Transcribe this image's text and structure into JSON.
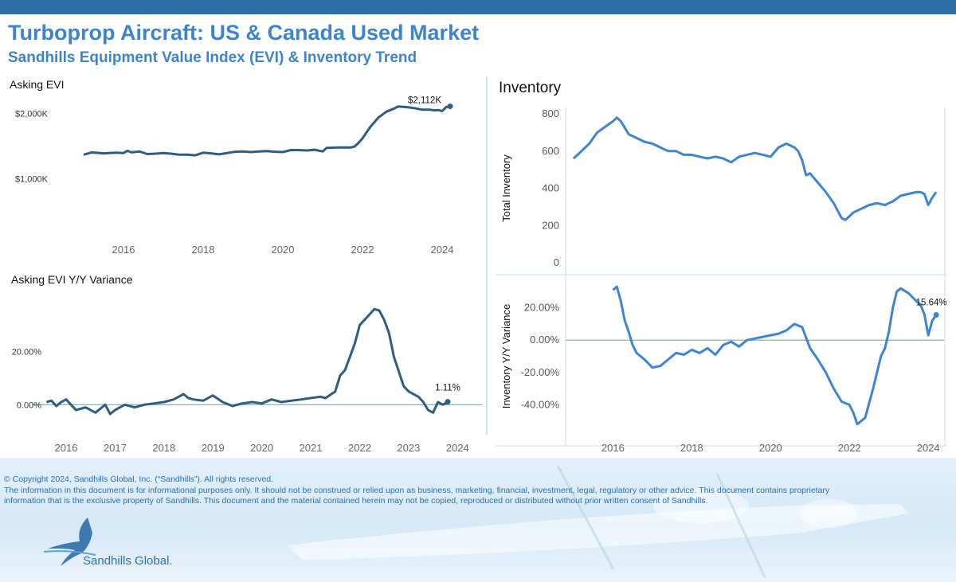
{
  "header": {
    "title": "Turboprop Aircraft:  US & Canada Used Market",
    "subtitle": "Sandhills Equipment Value Index (EVI) & Inventory Trend"
  },
  "footer": {
    "copyright": "© Copyright 2024, Sandhills Global, Inc. (“Sandhills”). All rights reserved.",
    "disclaimer_1": "The information in this document is for informational purposes only.  It should not be construed or relied upon as business, marketing, financial, investment, legal, regulatory or other advice. This document contains proprietary",
    "disclaimer_2": "information that is the exclusive property of Sandhills. This document and the material contained herein may not be copied, reproduced or distributed without prior written consent of Sandhills.",
    "brand": "Sandhills Global."
  },
  "colors": {
    "evi_line": "#2f5d80",
    "inventory_line": "#3f84d0",
    "accent": "#3f84c9",
    "zero_line": "#7fa6a6"
  },
  "chart_data": [
    {
      "id": "asking_evi",
      "type": "line",
      "title": "Asking EVI",
      "xlabel": "",
      "ylabel": "",
      "xlim": [
        2014.7,
        2024.8
      ],
      "ylim": [
        200,
        2400
      ],
      "x_ticks": [
        2016,
        2018,
        2020,
        2022,
        2024
      ],
      "x_tick_labels": [
        "2016",
        "2018",
        "2020",
        "2022",
        "2024"
      ],
      "y_ticks": [
        1000,
        2000
      ],
      "y_tick_labels": [
        "$1,000K",
        "$2,000K"
      ],
      "end_label": "$2,112K",
      "series": [
        {
          "x": [
            2015.0,
            2015.2,
            2015.5,
            2015.8,
            2016.0,
            2016.1,
            2016.2,
            2016.4,
            2016.6,
            2016.8,
            2017.0,
            2017.2,
            2017.4,
            2017.6,
            2017.8,
            2018.0,
            2018.2,
            2018.4,
            2018.6,
            2018.8,
            2019.0,
            2019.2,
            2019.4,
            2019.6,
            2019.8,
            2020.0,
            2020.2,
            2020.4,
            2020.6,
            2020.8,
            2021.0,
            2021.1,
            2021.4,
            2021.7,
            2021.8,
            2021.9,
            2022.0,
            2022.2,
            2022.4,
            2022.6,
            2022.8,
            2022.9,
            2023.1,
            2023.3,
            2023.5,
            2023.7,
            2023.8,
            2023.9,
            2024.0,
            2024.1,
            2024.2
          ],
          "y": [
            1370,
            1405,
            1390,
            1400,
            1395,
            1430,
            1405,
            1420,
            1380,
            1385,
            1395,
            1385,
            1370,
            1370,
            1360,
            1400,
            1390,
            1375,
            1395,
            1415,
            1420,
            1410,
            1420,
            1425,
            1415,
            1410,
            1440,
            1440,
            1435,
            1445,
            1420,
            1475,
            1480,
            1480,
            1495,
            1550,
            1620,
            1800,
            1940,
            2030,
            2080,
            2110,
            2100,
            2085,
            2060,
            2060,
            2050,
            2055,
            2040,
            2100,
            2112
          ]
        }
      ]
    },
    {
      "id": "asking_evi_yy",
      "type": "line",
      "title": "Asking EVI Y/Y Variance",
      "xlabel": "",
      "ylabel": "",
      "xlim": [
        2015.3,
        2024.5
      ],
      "ylim": [
        -0.08,
        0.43
      ],
      "x_ticks": [
        2016,
        2017,
        2018,
        2019,
        2020,
        2021,
        2022,
        2023,
        2024
      ],
      "x_tick_labels": [
        "2016",
        "2017",
        "2018",
        "2019",
        "2020",
        "2021",
        "2022",
        "2023",
        "2024"
      ],
      "y_ticks": [
        0,
        0.2
      ],
      "y_tick_labels": [
        "0.00%",
        "20.00%"
      ],
      "end_label": "1.11%",
      "series": [
        {
          "x": [
            2015.6,
            2015.7,
            2015.8,
            2015.9,
            2016.0,
            2016.2,
            2016.4,
            2016.6,
            2016.8,
            2016.9,
            2017.0,
            2017.2,
            2017.4,
            2017.6,
            2017.8,
            2018.0,
            2018.2,
            2018.4,
            2018.5,
            2018.6,
            2018.8,
            2019.0,
            2019.2,
            2019.4,
            2019.6,
            2019.8,
            2020.0,
            2020.2,
            2020.4,
            2020.6,
            2020.8,
            2021.0,
            2021.2,
            2021.3,
            2021.5,
            2021.6,
            2021.7,
            2021.9,
            2022.0,
            2022.2,
            2022.3,
            2022.4,
            2022.5,
            2022.6,
            2022.7,
            2022.9,
            2023.0,
            2023.2,
            2023.3,
            2023.4,
            2023.5,
            2023.6,
            2023.7,
            2023.8
          ],
          "y": [
            0.01,
            0.015,
            -0.005,
            0.01,
            0.02,
            -0.02,
            -0.01,
            -0.03,
            0.0,
            -0.035,
            -0.02,
            0.0,
            -0.01,
            0.0,
            0.005,
            0.01,
            0.02,
            0.04,
            0.025,
            0.02,
            0.015,
            0.035,
            0.01,
            -0.005,
            0.005,
            0.01,
            0.005,
            0.02,
            0.01,
            0.015,
            0.02,
            0.025,
            0.03,
            0.025,
            0.05,
            0.11,
            0.13,
            0.23,
            0.3,
            0.34,
            0.36,
            0.355,
            0.32,
            0.27,
            0.18,
            0.07,
            0.05,
            0.03,
            0.01,
            -0.02,
            -0.03,
            0.01,
            0.0,
            0.011
          ]
        }
      ]
    },
    {
      "id": "inventory",
      "type": "line",
      "title": "Inventory",
      "xlabel": "",
      "ylabel": "Total Inventory",
      "xlim": [
        2014.8,
        2024.4
      ],
      "ylim": [
        0,
        800
      ],
      "x_ticks": [
        2016,
        2018,
        2020,
        2022,
        2024
      ],
      "x_tick_labels": [
        "2016",
        "2018",
        "2020",
        "2022",
        "2024"
      ],
      "y_ticks": [
        0,
        200,
        400,
        600,
        800
      ],
      "y_tick_labels": [
        "0",
        "200",
        "400",
        "600",
        "800"
      ],
      "series": [
        {
          "x": [
            2015.0,
            2015.2,
            2015.4,
            2015.6,
            2015.8,
            2016.0,
            2016.1,
            2016.2,
            2016.4,
            2016.6,
            2016.8,
            2017.0,
            2017.2,
            2017.4,
            2017.6,
            2017.8,
            2018.0,
            2018.2,
            2018.4,
            2018.6,
            2018.8,
            2019.0,
            2019.2,
            2019.4,
            2019.6,
            2019.8,
            2020.0,
            2020.2,
            2020.4,
            2020.6,
            2020.7,
            2020.8,
            2020.9,
            2021.0,
            2021.2,
            2021.4,
            2021.6,
            2021.8,
            2021.9,
            2022.0,
            2022.1,
            2022.3,
            2022.5,
            2022.7,
            2022.9,
            2023.1,
            2023.3,
            2023.5,
            2023.7,
            2023.8,
            2023.9,
            2024.0,
            2024.1,
            2024.2
          ],
          "y": [
            560,
            600,
            640,
            700,
            730,
            760,
            780,
            760,
            690,
            670,
            650,
            640,
            620,
            600,
            600,
            580,
            580,
            570,
            560,
            570,
            560,
            540,
            570,
            580,
            590,
            580,
            570,
            620,
            640,
            620,
            600,
            550,
            470,
            480,
            430,
            380,
            320,
            240,
            230,
            250,
            270,
            290,
            310,
            320,
            310,
            330,
            360,
            370,
            380,
            380,
            370,
            310,
            350,
            380
          ]
        }
      ]
    },
    {
      "id": "inventory_yy",
      "type": "line",
      "title": "",
      "xlabel": "",
      "ylabel": "Inventory  Y/Y Variance",
      "xlim": [
        2014.8,
        2024.4
      ],
      "ylim": [
        -0.58,
        0.38
      ],
      "x_ticks": [
        2016,
        2018,
        2020,
        2022,
        2024
      ],
      "x_tick_labels": [
        "2016",
        "2018",
        "2020",
        "2022",
        "2024"
      ],
      "y_ticks": [
        -0.4,
        -0.2,
        0,
        0.2
      ],
      "y_tick_labels": [
        "-40.00%",
        "-20.00%",
        "0.00%",
        "20.00%"
      ],
      "end_label": "15.64%",
      "series": [
        {
          "x": [
            2016.0,
            2016.1,
            2016.2,
            2016.3,
            2016.4,
            2016.5,
            2016.6,
            2016.8,
            2017.0,
            2017.2,
            2017.4,
            2017.6,
            2017.8,
            2018.0,
            2018.2,
            2018.4,
            2018.6,
            2018.8,
            2019.0,
            2019.2,
            2019.4,
            2019.6,
            2019.8,
            2020.0,
            2020.2,
            2020.4,
            2020.6,
            2020.8,
            2021.0,
            2021.2,
            2021.4,
            2021.6,
            2021.8,
            2022.0,
            2022.1,
            2022.2,
            2022.4,
            2022.6,
            2022.8,
            2022.9,
            2023.0,
            2023.1,
            2023.2,
            2023.3,
            2023.5,
            2023.7,
            2023.8,
            2023.9,
            2024.0,
            2024.1,
            2024.2
          ],
          "y": [
            0.31,
            0.33,
            0.24,
            0.12,
            0.05,
            -0.03,
            -0.08,
            -0.12,
            -0.17,
            -0.16,
            -0.12,
            -0.08,
            -0.09,
            -0.06,
            -0.08,
            -0.05,
            -0.09,
            -0.03,
            -0.01,
            -0.04,
            0.0,
            0.01,
            0.02,
            0.03,
            0.04,
            0.06,
            0.1,
            0.08,
            -0.05,
            -0.12,
            -0.2,
            -0.3,
            -0.38,
            -0.4,
            -0.45,
            -0.52,
            -0.48,
            -0.3,
            -0.1,
            -0.05,
            0.05,
            0.2,
            0.3,
            0.32,
            0.29,
            0.24,
            0.22,
            0.16,
            0.03,
            0.12,
            0.156
          ]
        }
      ]
    }
  ]
}
